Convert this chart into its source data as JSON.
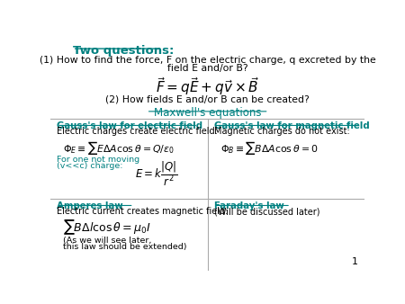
{
  "background_color": "#ffffff",
  "teal_color": "#008080",
  "black_color": "#000000",
  "title_text": "Two questions:",
  "q1_line1": "(1) How to find the force, F on the electric charge, q excreted by the",
  "q1_line2": "field E and/or B?",
  "q2_text": "(2) How fields E and/or B can be created?",
  "maxwell_text": "Maxwell's equations",
  "slide_number": "1",
  "gauss_e_title": "Gauss's law for electric field",
  "gauss_e_sub": "Electric charges create electric field:",
  "gauss_b_title": "Gauss's law for magnetic field",
  "gauss_b_sub": "Magnetic charges do not exist:",
  "ampere_title": "Amperes law",
  "ampere_sub": "Electric current creates magnetic field:",
  "faraday_title": "Faraday's law",
  "faraday_sub": "(Will be discussed later)",
  "ampere_note1": "(As we will see later,",
  "ampere_note2": "this law should be extended)"
}
